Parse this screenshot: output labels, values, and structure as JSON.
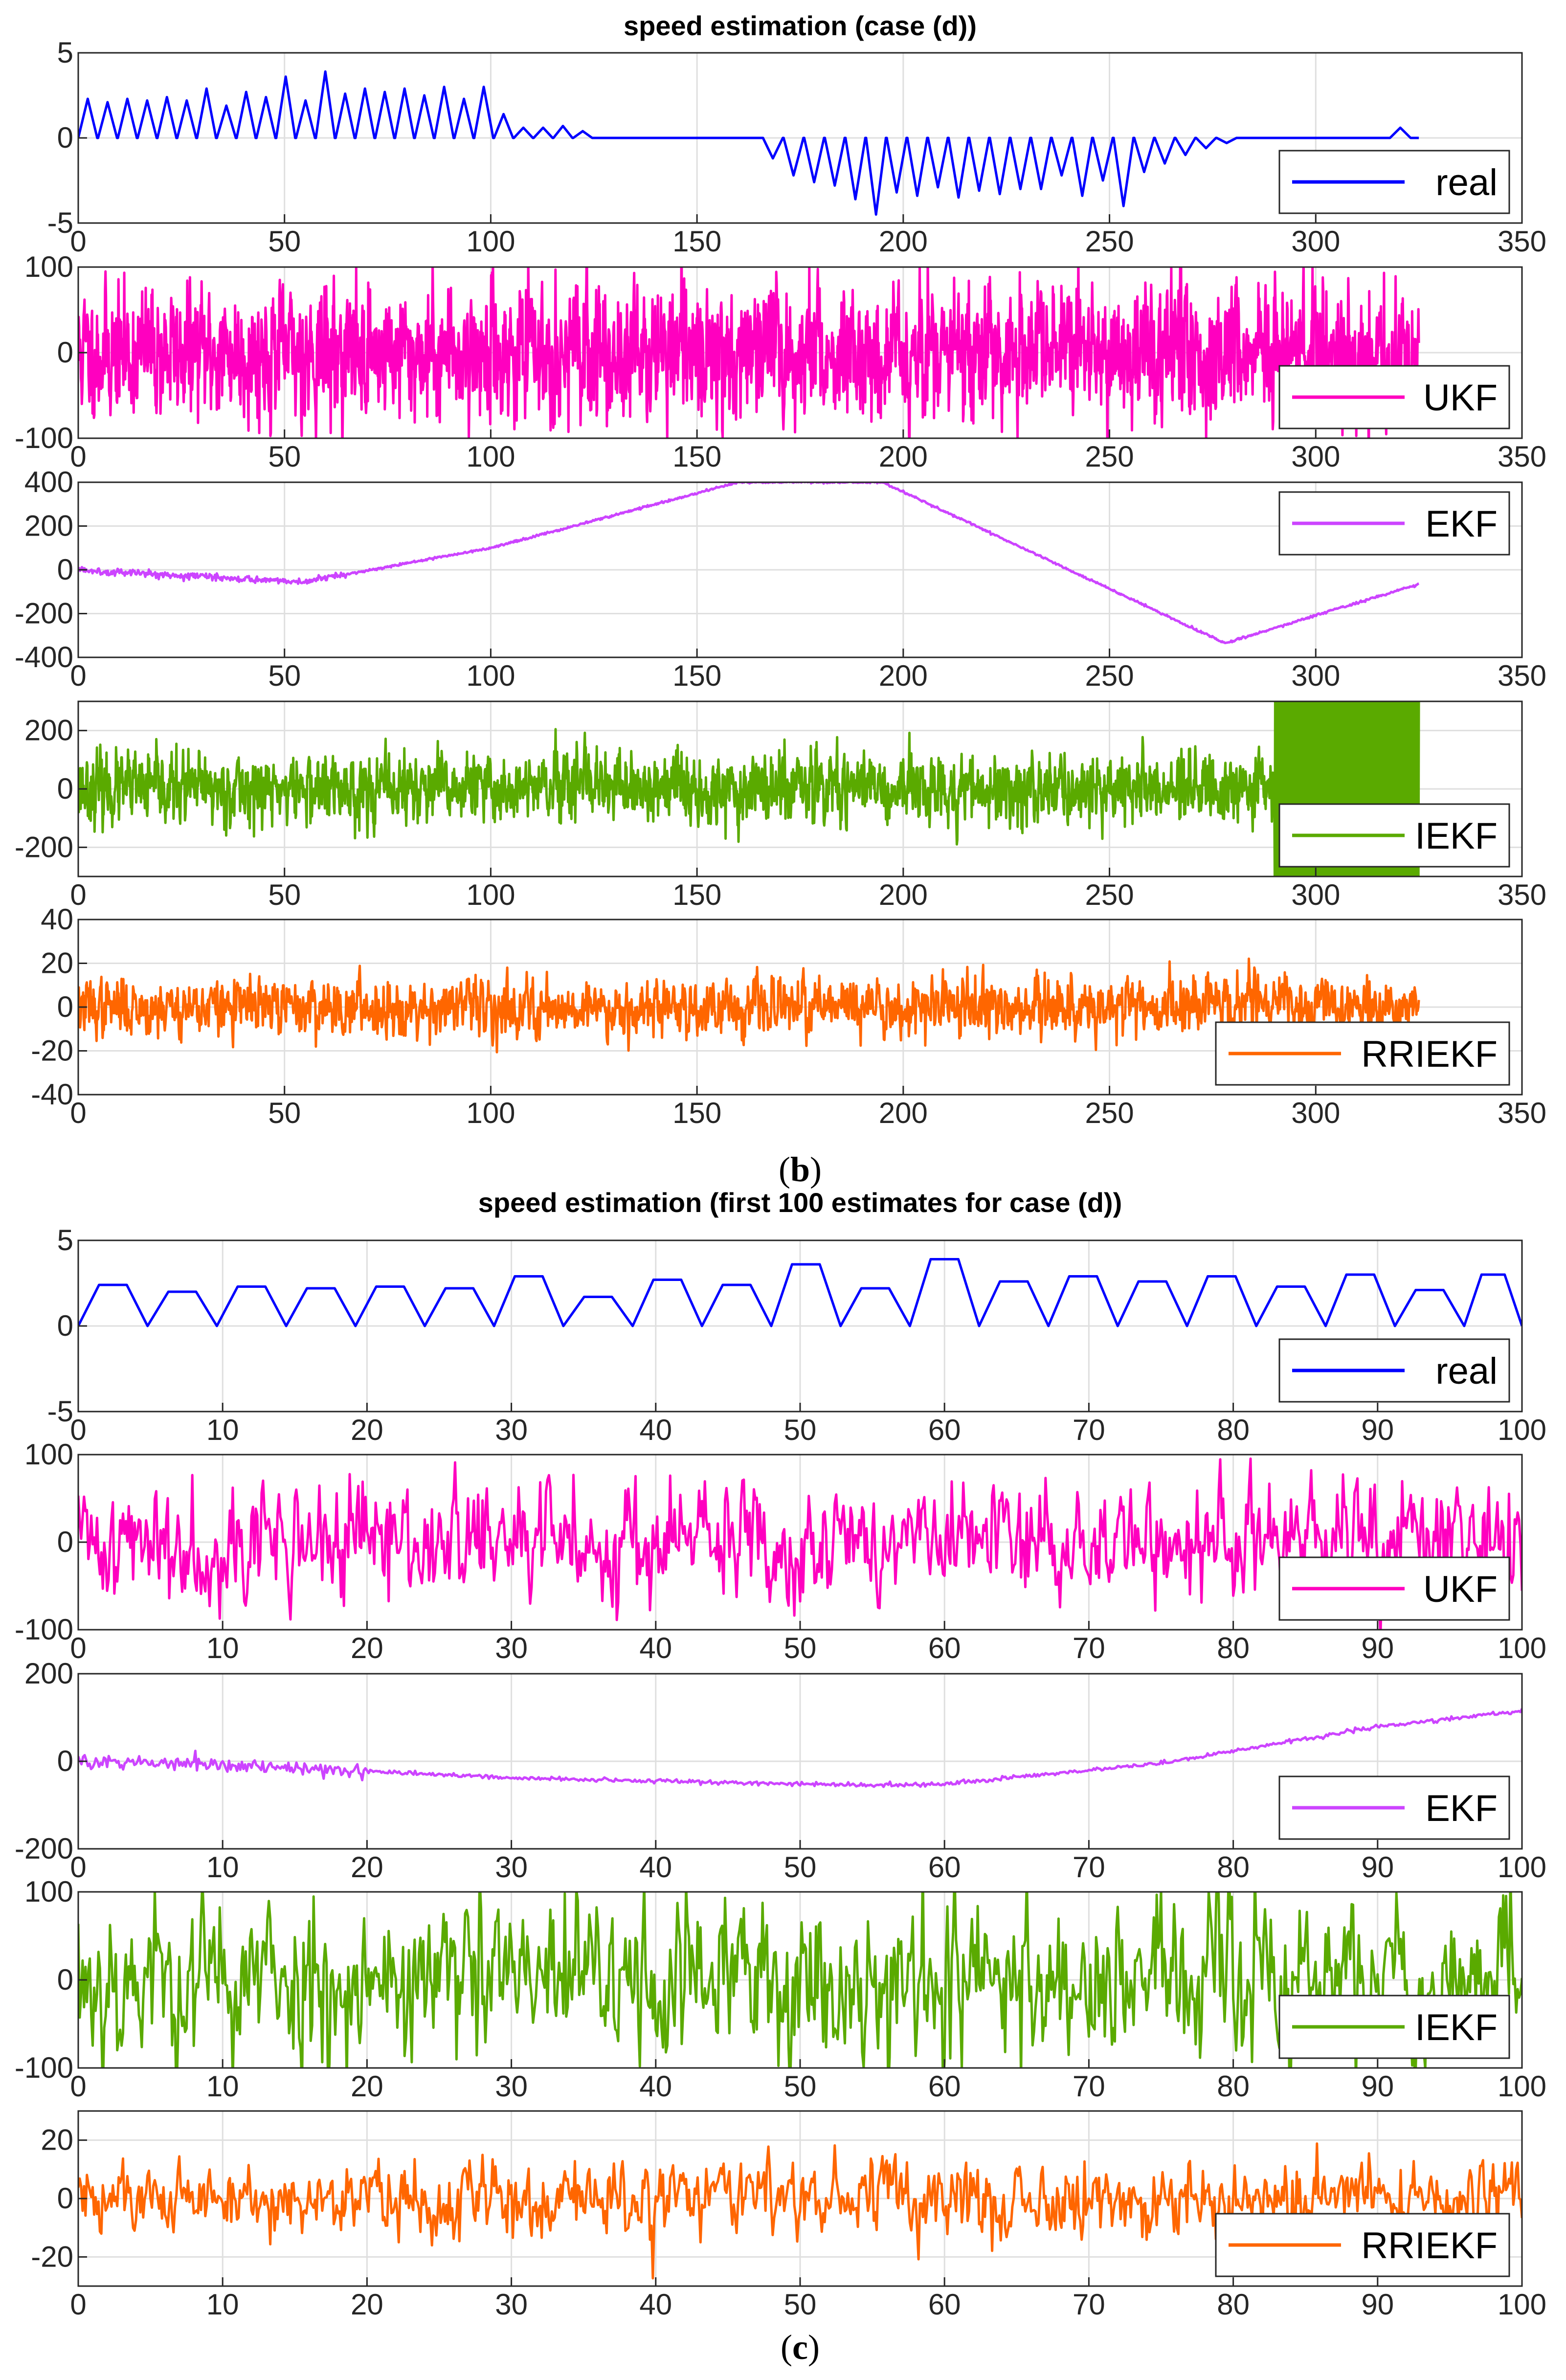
{
  "chart_data": [
    {
      "figure": "b",
      "caption_label": "b",
      "title": "speed estimation (case (d))",
      "xlim": [
        0,
        350
      ],
      "xticks": [
        0,
        50,
        100,
        150,
        200,
        250,
        300,
        350
      ],
      "panels": [
        {
          "name": "real",
          "type": "line",
          "color": "#0000ff",
          "ylim": [
            -5,
            5
          ],
          "yticks": [
            -5,
            0,
            5
          ],
          "legend": "real",
          "legend_position": "bottom-right",
          "x_end": 325,
          "pattern": "triangle_pulses",
          "pulses": [
            {
              "start": 0,
              "width": 4.6,
              "peak": 2.3
            },
            {
              "start": 4.8,
              "width": 4.6,
              "peak": 2.1
            },
            {
              "start": 9.6,
              "width": 4.6,
              "peak": 2.3
            },
            {
              "start": 14.4,
              "width": 4.6,
              "peak": 2.2
            },
            {
              "start": 19.2,
              "width": 4.6,
              "peak": 2.4
            },
            {
              "start": 24,
              "width": 4.6,
              "peak": 2.2
            },
            {
              "start": 28.8,
              "width": 4.6,
              "peak": 2.9
            },
            {
              "start": 33.6,
              "width": 4.6,
              "peak": 1.9
            },
            {
              "start": 38.4,
              "width": 4.6,
              "peak": 2.7
            },
            {
              "start": 43.2,
              "width": 4.6,
              "peak": 2.4
            },
            {
              "start": 48,
              "width": 4.6,
              "peak": 3.6
            },
            {
              "start": 52.8,
              "width": 4.6,
              "peak": 2.2
            },
            {
              "start": 57.6,
              "width": 4.6,
              "peak": 3.9
            },
            {
              "start": 62.4,
              "width": 4.6,
              "peak": 2.6
            },
            {
              "start": 67.2,
              "width": 4.6,
              "peak": 2.9
            },
            {
              "start": 72,
              "width": 4.6,
              "peak": 2.7
            },
            {
              "start": 76.8,
              "width": 4.6,
              "peak": 2.9
            },
            {
              "start": 81.6,
              "width": 4.6,
              "peak": 2.5
            },
            {
              "start": 86.4,
              "width": 4.6,
              "peak": 3.0
            },
            {
              "start": 91.2,
              "width": 4.6,
              "peak": 2.3
            },
            {
              "start": 96,
              "width": 4.6,
              "peak": 3.0
            },
            {
              "start": 100.8,
              "width": 4.6,
              "peak": 1.4
            },
            {
              "start": 105.6,
              "width": 4.6,
              "peak": 0.6
            },
            {
              "start": 110.4,
              "width": 4.6,
              "peak": 0.6
            },
            {
              "start": 115.2,
              "width": 4.6,
              "peak": 0.7
            },
            {
              "start": 120,
              "width": 4.6,
              "peak": 0.4
            },
            {
              "start": 166,
              "width": 4.8,
              "peak": -1.2
            },
            {
              "start": 171,
              "width": 4.8,
              "peak": -2.2
            },
            {
              "start": 176,
              "width": 4.8,
              "peak": -2.6
            },
            {
              "start": 181,
              "width": 4.8,
              "peak": -2.8
            },
            {
              "start": 186,
              "width": 4.8,
              "peak": -3.6
            },
            {
              "start": 191,
              "width": 4.8,
              "peak": -4.5
            },
            {
              "start": 196,
              "width": 4.8,
              "peak": -3.2
            },
            {
              "start": 201,
              "width": 4.8,
              "peak": -3.4
            },
            {
              "start": 206,
              "width": 4.8,
              "peak": -2.9
            },
            {
              "start": 211,
              "width": 4.8,
              "peak": -3.5
            },
            {
              "start": 216,
              "width": 4.8,
              "peak": -3.1
            },
            {
              "start": 221,
              "width": 4.8,
              "peak": -3.3
            },
            {
              "start": 226,
              "width": 4.8,
              "peak": -3.0
            },
            {
              "start": 231,
              "width": 4.8,
              "peak": -3.0
            },
            {
              "start": 236,
              "width": 4.8,
              "peak": -2.2
            },
            {
              "start": 241,
              "width": 4.8,
              "peak": -3.4
            },
            {
              "start": 246,
              "width": 4.8,
              "peak": -2.5
            },
            {
              "start": 251,
              "width": 4.8,
              "peak": -4.0
            },
            {
              "start": 256,
              "width": 4.8,
              "peak": -2.0
            },
            {
              "start": 261,
              "width": 4.8,
              "peak": -1.5
            },
            {
              "start": 266,
              "width": 4.8,
              "peak": -1.0
            },
            {
              "start": 271,
              "width": 4.8,
              "peak": -0.6
            },
            {
              "start": 276,
              "width": 4.8,
              "peak": -0.3
            },
            {
              "start": 318,
              "width": 5,
              "peak": 0.6
            }
          ]
        },
        {
          "name": "UKF",
          "type": "line",
          "color": "#ff00bf",
          "ylim": [
            -100,
            100
          ],
          "yticks": [
            -100,
            0,
            100
          ],
          "legend": "UKF",
          "legend_position": "bottom-right",
          "x_end": 325,
          "pattern": "noise",
          "noise_std": 35,
          "samples": 3000,
          "seed": 11
        },
        {
          "name": "EKF",
          "type": "line",
          "color": "#cc44ff",
          "ylim": [
            -400,
            400
          ],
          "yticks": [
            -400,
            -200,
            0,
            200,
            400
          ],
          "legend": "EKF",
          "legend_position": "top-right",
          "x_end": 325,
          "pattern": "piecewise",
          "points": [
            [
              0,
              0
            ],
            [
              20,
              -20
            ],
            [
              55,
              -55
            ],
            [
              100,
              100
            ],
            [
              160,
              400
            ],
            [
              195,
              400
            ],
            [
              278,
              -335
            ],
            [
              325,
              -65
            ]
          ],
          "noise_std": 4,
          "samples": 1500,
          "seed": 5
        },
        {
          "name": "IEKF",
          "type": "line",
          "color": "#5aaa00",
          "ylim": [
            -300,
            300
          ],
          "yticks": [
            -200,
            0,
            200
          ],
          "legend": "IEKF",
          "legend_position": "bottom-right",
          "x_end": 325,
          "pattern": "noise",
          "noise_std": 55,
          "samples": 2800,
          "seed": 23,
          "saturated_range": [
            290,
            325
          ]
        },
        {
          "name": "RRIEKF",
          "type": "line",
          "color": "#ff6600",
          "ylim": [
            -40,
            40
          ],
          "yticks": [
            -40,
            -20,
            0,
            20,
            40
          ],
          "legend": "RRIEKF",
          "legend_position": "bottom-right",
          "x_end": 325,
          "pattern": "noise",
          "noise_std": 6,
          "samples": 2200,
          "seed": 37
        }
      ]
    },
    {
      "figure": "c",
      "caption_label": "c",
      "title": "speed estimation (first 100 estimates for case (d))",
      "xlim": [
        0,
        100
      ],
      "xticks": [
        0,
        10,
        20,
        30,
        40,
        50,
        60,
        70,
        80,
        90,
        100
      ],
      "panels": [
        {
          "name": "real",
          "type": "line",
          "color": "#0000ff",
          "ylim": [
            -5,
            5
          ],
          "yticks": [
            -5,
            0,
            5
          ],
          "legend": "real",
          "legend_position": "bottom-right",
          "x_end": 100,
          "pattern": "trapezoid_pulses",
          "pulses": [
            {
              "start": 0,
              "width": 4.8,
              "peak": 2.4
            },
            {
              "start": 4.8,
              "width": 4.8,
              "peak": 2.0
            },
            {
              "start": 9.6,
              "width": 4.8,
              "peak": 2.3
            },
            {
              "start": 14.4,
              "width": 4.8,
              "peak": 2.2
            },
            {
              "start": 19.2,
              "width": 4.8,
              "peak": 2.3
            },
            {
              "start": 24,
              "width": 4.8,
              "peak": 2.2
            },
            {
              "start": 28.8,
              "width": 4.8,
              "peak": 2.9
            },
            {
              "start": 33.6,
              "width": 4.8,
              "peak": 1.7
            },
            {
              "start": 38.4,
              "width": 4.8,
              "peak": 2.7
            },
            {
              "start": 43.2,
              "width": 4.8,
              "peak": 2.4
            },
            {
              "start": 48,
              "width": 4.8,
              "peak": 3.6
            },
            {
              "start": 52.8,
              "width": 4.8,
              "peak": 2.2
            },
            {
              "start": 57.6,
              "width": 4.8,
              "peak": 3.9
            },
            {
              "start": 62.4,
              "width": 4.8,
              "peak": 2.6
            },
            {
              "start": 67.2,
              "width": 4.8,
              "peak": 2.9
            },
            {
              "start": 72,
              "width": 4.8,
              "peak": 2.6
            },
            {
              "start": 76.8,
              "width": 4.8,
              "peak": 2.9
            },
            {
              "start": 81.6,
              "width": 4.8,
              "peak": 2.3
            },
            {
              "start": 86.4,
              "width": 4.8,
              "peak": 3.0
            },
            {
              "start": 91.2,
              "width": 4.8,
              "peak": 2.1
            },
            {
              "start": 96,
              "width": 4.0,
              "peak": 3.0
            }
          ]
        },
        {
          "name": "UKF",
          "type": "line",
          "color": "#ff00bf",
          "ylim": [
            -100,
            100
          ],
          "yticks": [
            -100,
            0,
            100
          ],
          "legend": "UKF",
          "legend_position": "bottom-right",
          "x_end": 100,
          "pattern": "noise",
          "noise_std": 32,
          "samples": 1000,
          "seed": 41
        },
        {
          "name": "EKF",
          "type": "line",
          "color": "#cc44ff",
          "ylim": [
            -200,
            200
          ],
          "yticks": [
            -200,
            0,
            200
          ],
          "legend": "EKF",
          "legend_position": "bottom-right",
          "x_end": 100,
          "pattern": "piecewise",
          "points": [
            [
              0,
              0
            ],
            [
              15,
              -15
            ],
            [
              30,
              -38
            ],
            [
              55,
              -55
            ],
            [
              60,
              -52
            ],
            [
              75,
              -5
            ],
            [
              90,
              80
            ],
            [
              100,
              115
            ]
          ],
          "noise_std": 4,
          "samples": 900,
          "seed": 9
        },
        {
          "name": "IEKF",
          "type": "line",
          "color": "#5aaa00",
          "ylim": [
            -100,
            100
          ],
          "yticks": [
            -100,
            0,
            100
          ],
          "legend": "IEKF",
          "legend_position": "bottom-right",
          "x_end": 100,
          "pattern": "noise",
          "noise_std": 45,
          "samples": 1000,
          "seed": 53
        },
        {
          "name": "RRIEKF",
          "type": "line",
          "color": "#ff6600",
          "ylim": [
            -30,
            30
          ],
          "yticks": [
            -20,
            0,
            20
          ],
          "legend": "RRIEKF",
          "legend_position": "bottom-right",
          "x_end": 100,
          "pattern": "noise",
          "noise_std": 6,
          "samples": 1000,
          "seed": 61
        }
      ]
    }
  ]
}
